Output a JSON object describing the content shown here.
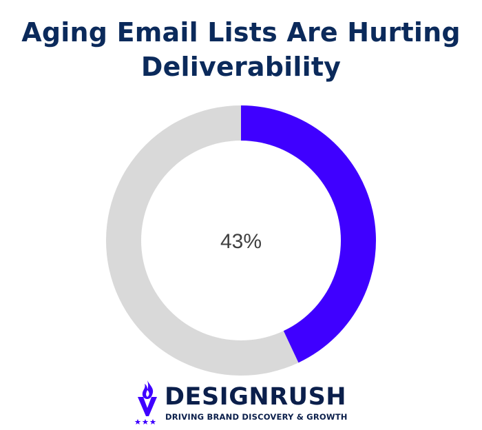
{
  "title": {
    "line1": "Aging Email Lists Are Hurting",
    "line2": "Deliverability"
  },
  "chart_data": {
    "type": "pie",
    "variant": "donut",
    "title": "Aging Email Lists Are Hurting Deliverability",
    "center_label": "43%",
    "slices": [
      {
        "value": 43,
        "color": "#3f00ff"
      },
      {
        "value": 57,
        "color": "#d9d9d9"
      }
    ],
    "start_position": "top",
    "direction": "clockwise"
  },
  "brand": {
    "name": "DESIGNRUSH",
    "tagline": "DRIVING BRAND DISCOVERY & GROWTH",
    "logo_icon": "flame-torch-icon",
    "stars_icon": "three-stars-icon",
    "color": "#0b1f4b",
    "accent": "#3f00ff"
  }
}
